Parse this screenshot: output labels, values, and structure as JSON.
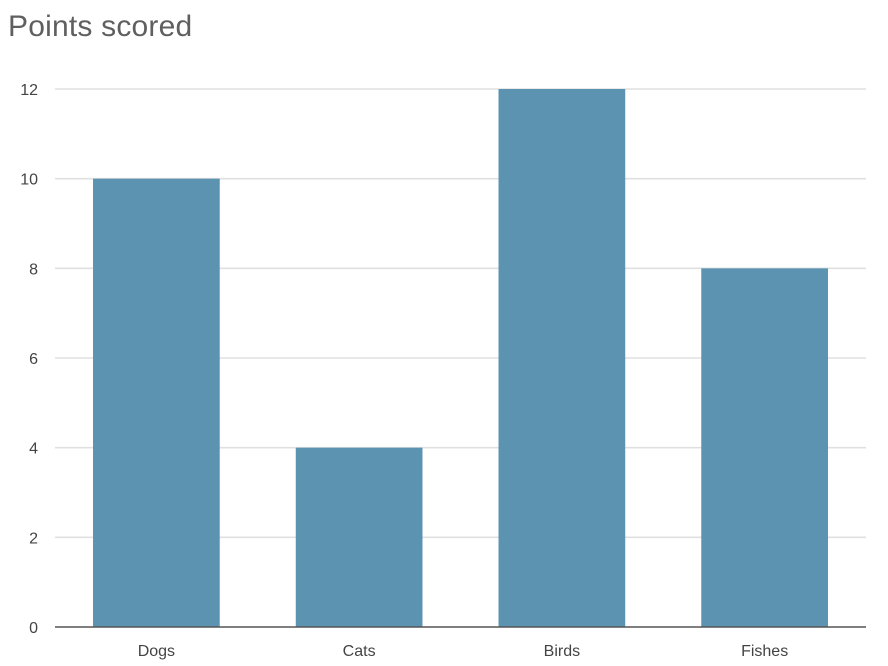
{
  "chart_data": {
    "type": "bar",
    "title": "Points scored",
    "categories": [
      "Dogs",
      "Cats",
      "Birds",
      "Fishes"
    ],
    "values": [
      10,
      4,
      12,
      8
    ],
    "yticks": [
      "0",
      "2",
      "4",
      "6",
      "8",
      "10",
      "12"
    ],
    "ylim": [
      0,
      12
    ],
    "xlabel": "",
    "ylabel": "",
    "grid": true,
    "bar_color": "#5b93b1",
    "gridline_color": "#e0e0e0",
    "axis_color": "#555555",
    "label_color": "#444444"
  }
}
